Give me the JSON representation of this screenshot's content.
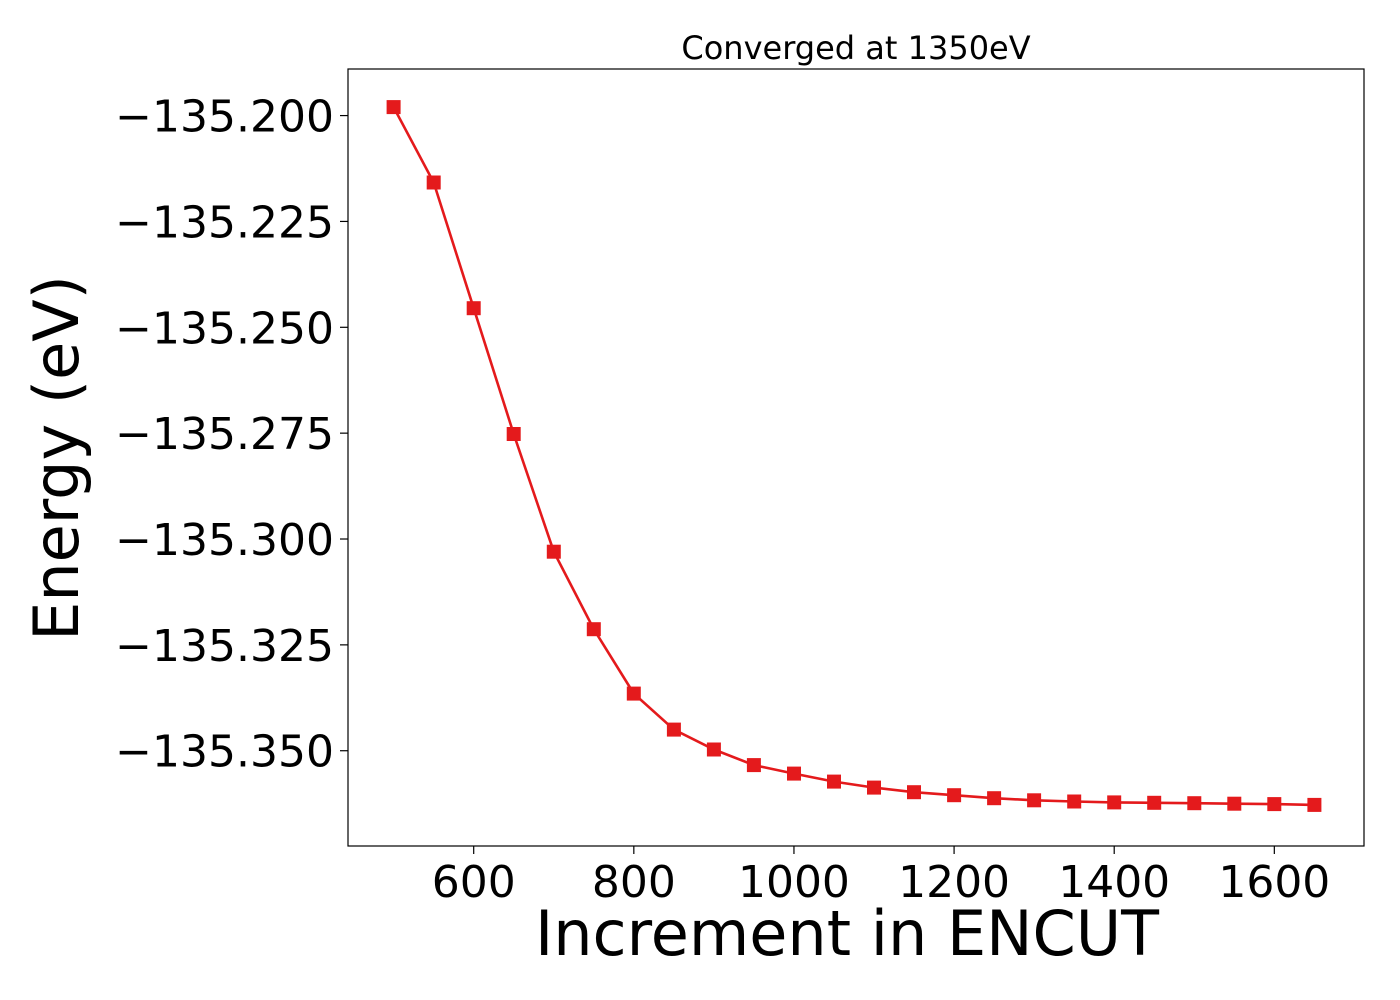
{
  "chart_data": {
    "type": "line",
    "title": "Converged at 1350eV",
    "xlabel": "Increment in ENCUT",
    "ylabel": "Energy (eV)",
    "xlim": [
      443,
      1712
    ],
    "ylim": [
      -135.3725,
      -135.189
    ],
    "x_ticks": [
      600,
      800,
      1000,
      1200,
      1400,
      1600
    ],
    "y_ticks": [
      -135.2,
      -135.225,
      -135.25,
      -135.275,
      -135.3,
      -135.325,
      -135.35
    ],
    "y_tick_labels": [
      "−135.200",
      "−135.225",
      "−135.250",
      "−135.275",
      "−135.300",
      "−135.325",
      "−135.350"
    ],
    "grid": false,
    "series": [
      {
        "color": "#e41a1c",
        "marker": "square",
        "x": [
          500,
          550,
          600,
          650,
          700,
          750,
          800,
          850,
          900,
          950,
          1000,
          1050,
          1100,
          1150,
          1200,
          1250,
          1300,
          1350,
          1400,
          1450,
          1500,
          1550,
          1600,
          1650
        ],
        "y": [
          -135.198,
          -135.2158,
          -135.2455,
          -135.2752,
          -135.303,
          -135.3213,
          -135.3365,
          -135.345,
          -135.3497,
          -135.3534,
          -135.3554,
          -135.3573,
          -135.3587,
          -135.3598,
          -135.3605,
          -135.3612,
          -135.3617,
          -135.362,
          -135.3622,
          -135.3623,
          -135.3624,
          -135.3625,
          -135.3626,
          -135.3628
        ]
      }
    ]
  }
}
